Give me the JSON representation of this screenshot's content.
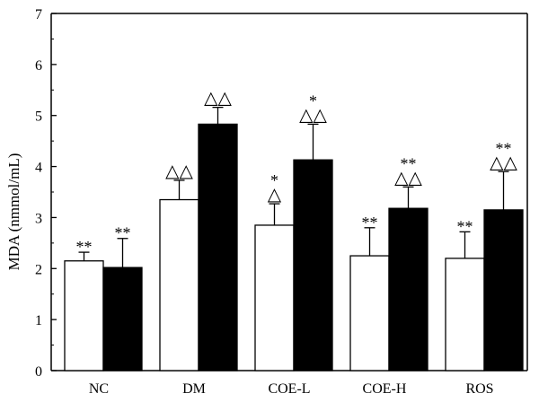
{
  "chart_data": {
    "type": "bar",
    "title": "",
    "xlabel": "",
    "ylabel": "MDA (nmmol/mL)",
    "ylim": [
      0,
      7
    ],
    "yticks": [
      "0",
      "1",
      "2",
      "3",
      "4",
      "5",
      "6",
      "7"
    ],
    "categories": [
      "NC",
      "DM",
      "COE-L",
      "COE-H",
      "ROS"
    ],
    "series": [
      {
        "fill": "#ffffff",
        "values": [
          2.15,
          3.35,
          2.85,
          2.25,
          2.2
        ],
        "errors": [
          0.17,
          0.38,
          0.42,
          0.55,
          0.52
        ],
        "annotations": [
          [
            "**"
          ],
          [
            "△△"
          ],
          [
            "△",
            "*"
          ],
          [
            "**"
          ],
          [
            "**"
          ]
        ]
      },
      {
        "fill": "#000000",
        "values": [
          2.02,
          4.83,
          4.13,
          3.18,
          3.15
        ],
        "errors": [
          0.57,
          0.33,
          0.7,
          0.42,
          0.75
        ],
        "annotations": [
          [
            "**"
          ],
          [
            "△△"
          ],
          [
            "△△",
            "*"
          ],
          [
            "△△",
            "**"
          ],
          [
            "△△",
            "**"
          ]
        ]
      }
    ],
    "grid": false,
    "legend": "none"
  }
}
